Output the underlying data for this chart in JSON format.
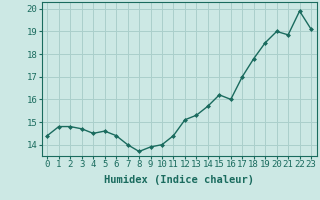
{
  "x": [
    0,
    1,
    2,
    3,
    4,
    5,
    6,
    7,
    8,
    9,
    10,
    11,
    12,
    13,
    14,
    15,
    16,
    17,
    18,
    19,
    20,
    21,
    22,
    23
  ],
  "y": [
    14.4,
    14.8,
    14.8,
    14.7,
    14.5,
    14.6,
    14.4,
    14.0,
    13.7,
    13.9,
    14.0,
    14.4,
    15.1,
    15.3,
    15.7,
    16.2,
    16.0,
    17.0,
    17.8,
    18.5,
    19.0,
    18.85,
    19.9,
    19.1
  ],
  "line_color": "#1a6b5e",
  "marker": "D",
  "marker_size": 2.0,
  "bg_color": "#cce8e4",
  "grid_color": "#aacfcb",
  "xlabel": "Humidex (Indice chaleur)",
  "xlim": [
    -0.5,
    23.5
  ],
  "ylim": [
    13.5,
    20.3
  ],
  "yticks": [
    14,
    15,
    16,
    17,
    18,
    19,
    20
  ],
  "xticks": [
    0,
    1,
    2,
    3,
    4,
    5,
    6,
    7,
    8,
    9,
    10,
    11,
    12,
    13,
    14,
    15,
    16,
    17,
    18,
    19,
    20,
    21,
    22,
    23
  ],
  "xlabel_fontsize": 7.5,
  "tick_fontsize": 6.5,
  "line_width": 1.0
}
